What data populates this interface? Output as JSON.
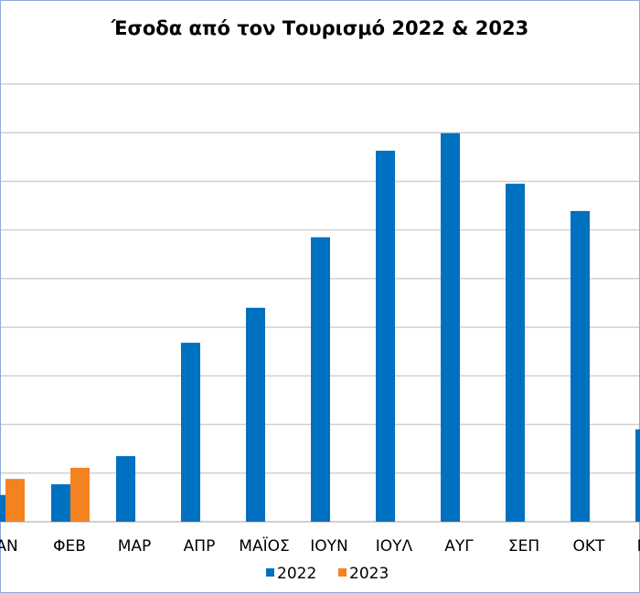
{
  "chart_data": {
    "type": "bar",
    "title": "Έσοδα από τον Τουρισμό 2022 & 2023",
    "categories": [
      "ΙΑΝ",
      "ΦΕΒ",
      "ΜΑΡ",
      "ΑΠΡ",
      "ΜΑΪΟΣ",
      "ΙΟΥΝ",
      "ΙΟΥΛ",
      "ΑΥΓ",
      "ΣΕΠ",
      "ΟΚΤ",
      "ΝΟΕ"
    ],
    "series": [
      {
        "name": "2022",
        "color": "#0070c0",
        "values": [
          0.55,
          0.77,
          1.35,
          3.68,
          4.4,
          5.85,
          7.63,
          7.99,
          6.95,
          6.39,
          1.9
        ]
      },
      {
        "name": "2023",
        "color": "#f58220",
        "values": [
          0.88,
          1.11,
          null,
          null,
          null,
          null,
          null,
          null,
          null,
          null,
          null
        ]
      }
    ],
    "ylim": [
      0,
      9
    ],
    "yticks": [
      0,
      1,
      2,
      3,
      4,
      5,
      6,
      7,
      8,
      9
    ],
    "grid": true,
    "legend": "bottom"
  }
}
